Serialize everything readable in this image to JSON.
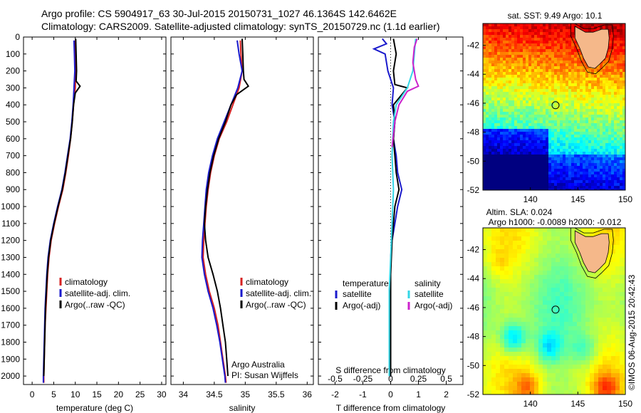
{
  "header": {
    "line1": "Argo profile: CS 5904917_63 30-Jul-2015 20150731_1027 46.1364S 142.6462E",
    "line2": "Climatology: CARS2009. Satellite-adjusted climatology: synTS_20150729.nc (1.1d earlier)"
  },
  "side_text": "©IMOS 06-Aug-2015 20:42:43",
  "chart_data": [
    {
      "type": "line",
      "id": "temperature",
      "xlabel": "temperature (deg C)",
      "ylabel": "",
      "xlim": [
        -2,
        31
      ],
      "ylim": [
        2050,
        0
      ],
      "xticks": [
        0,
        5,
        10,
        15,
        20,
        25,
        30
      ],
      "yticks": [
        0,
        100,
        200,
        300,
        400,
        500,
        600,
        700,
        800,
        900,
        1000,
        1100,
        1200,
        1300,
        1400,
        1500,
        1600,
        1700,
        1800,
        1900,
        2000
      ],
      "legend": [
        "climatology",
        "satellite-adj. clim.",
        "Argo(..raw -QC)"
      ],
      "series": [
        {
          "name": "climatology",
          "color": "#d62020",
          "points": [
            [
              10.0,
              20
            ],
            [
              10.0,
              100
            ],
            [
              10.1,
              200
            ],
            [
              10.0,
              300
            ],
            [
              9.6,
              400
            ],
            [
              9.3,
              500
            ],
            [
              8.9,
              600
            ],
            [
              8.4,
              700
            ],
            [
              7.8,
              800
            ],
            [
              7.1,
              900
            ],
            [
              6.1,
              1000
            ],
            [
              5.2,
              1100
            ],
            [
              4.4,
              1200
            ],
            [
              3.9,
              1300
            ],
            [
              3.6,
              1400
            ],
            [
              3.4,
              1500
            ],
            [
              3.2,
              1600
            ],
            [
              3.0,
              1700
            ],
            [
              2.9,
              1800
            ],
            [
              2.8,
              1900
            ],
            [
              2.7,
              2000
            ],
            [
              2.7,
              2040
            ]
          ]
        },
        {
          "name": "satellite-adj. clim.",
          "color": "#1a1acc",
          "points": [
            [
              9.7,
              20
            ],
            [
              9.8,
              100
            ],
            [
              9.9,
              200
            ],
            [
              9.7,
              300
            ],
            [
              9.5,
              400
            ],
            [
              9.2,
              500
            ],
            [
              8.8,
              600
            ],
            [
              8.2,
              700
            ],
            [
              7.6,
              800
            ],
            [
              6.9,
              900
            ],
            [
              5.9,
              1000
            ],
            [
              5.0,
              1100
            ],
            [
              4.2,
              1200
            ],
            [
              3.7,
              1300
            ],
            [
              3.4,
              1400
            ],
            [
              3.2,
              1500
            ],
            [
              3.0,
              1600
            ],
            [
              2.9,
              1700
            ],
            [
              2.8,
              1800
            ],
            [
              2.7,
              1900
            ],
            [
              2.6,
              2000
            ],
            [
              2.6,
              2040
            ]
          ]
        },
        {
          "name": "Argo(..raw -QC)",
          "color": "#000000",
          "points": [
            [
              10.1,
              10
            ],
            [
              10.2,
              100
            ],
            [
              10.3,
              200
            ],
            [
              10.2,
              260
            ],
            [
              11.1,
              290
            ],
            [
              10.0,
              330
            ],
            [
              9.6,
              400
            ],
            [
              9.3,
              500
            ],
            [
              8.9,
              600
            ],
            [
              8.3,
              700
            ],
            [
              7.7,
              800
            ],
            [
              7.0,
              900
            ],
            [
              6.0,
              1000
            ],
            [
              5.1,
              1100
            ],
            [
              4.3,
              1200
            ],
            [
              3.8,
              1300
            ],
            [
              3.5,
              1400
            ],
            [
              3.3,
              1500
            ],
            [
              3.1,
              1600
            ],
            [
              3.0,
              1700
            ],
            [
              2.9,
              1800
            ],
            [
              2.8,
              1900
            ],
            [
              2.7,
              2000
            ]
          ]
        }
      ]
    },
    {
      "type": "line",
      "id": "salinity",
      "xlabel": "salinity",
      "ylabel": "",
      "xlim": [
        33.8,
        36.1
      ],
      "ylim": [
        2050,
        0
      ],
      "xticks": [
        34,
        34.5,
        35,
        35.5,
        36
      ],
      "legend": [
        "climatology",
        "satellite-adj. clim.",
        "Argo(..raw -QC)"
      ],
      "annotations": [
        "Argo Australia",
        "PI: Susan Wijffels"
      ],
      "series": [
        {
          "name": "climatology",
          "color": "#d62020",
          "points": [
            [
              34.92,
              20
            ],
            [
              34.93,
              100
            ],
            [
              34.95,
              200
            ],
            [
              34.9,
              300
            ],
            [
              34.8,
              400
            ],
            [
              34.7,
              500
            ],
            [
              34.58,
              600
            ],
            [
              34.5,
              700
            ],
            [
              34.44,
              800
            ],
            [
              34.4,
              900
            ],
            [
              34.37,
              1000
            ],
            [
              34.35,
              1100
            ],
            [
              34.33,
              1200
            ],
            [
              34.32,
              1300
            ],
            [
              34.36,
              1400
            ],
            [
              34.42,
              1500
            ],
            [
              34.5,
              1600
            ],
            [
              34.56,
              1700
            ],
            [
              34.6,
              1800
            ],
            [
              34.64,
              1900
            ],
            [
              34.68,
              2000
            ],
            [
              34.69,
              2040
            ]
          ]
        },
        {
          "name": "satellite-adj. clim.",
          "color": "#1a1acc",
          "points": [
            [
              34.87,
              20
            ],
            [
              34.9,
              100
            ],
            [
              34.95,
              200
            ],
            [
              34.88,
              300
            ],
            [
              34.77,
              400
            ],
            [
              34.66,
              500
            ],
            [
              34.55,
              600
            ],
            [
              34.47,
              700
            ],
            [
              34.41,
              800
            ],
            [
              34.37,
              900
            ],
            [
              34.35,
              1000
            ],
            [
              34.33,
              1100
            ],
            [
              34.31,
              1200
            ],
            [
              34.3,
              1300
            ],
            [
              34.34,
              1400
            ],
            [
              34.4,
              1500
            ],
            [
              34.48,
              1600
            ],
            [
              34.54,
              1700
            ],
            [
              34.59,
              1800
            ],
            [
              34.63,
              1900
            ],
            [
              34.67,
              2000
            ],
            [
              34.68,
              2040
            ]
          ]
        },
        {
          "name": "Argo(..raw -QC)",
          "color": "#000000",
          "points": [
            [
              34.95,
              10
            ],
            [
              34.96,
              100
            ],
            [
              34.97,
              200
            ],
            [
              34.98,
              250
            ],
            [
              35.05,
              290
            ],
            [
              34.86,
              340
            ],
            [
              34.77,
              400
            ],
            [
              34.68,
              500
            ],
            [
              34.57,
              600
            ],
            [
              34.49,
              700
            ],
            [
              34.43,
              800
            ],
            [
              34.39,
              900
            ],
            [
              34.36,
              1000
            ],
            [
              34.34,
              1100
            ],
            [
              34.36,
              1200
            ],
            [
              34.4,
              1300
            ],
            [
              34.48,
              1400
            ],
            [
              34.55,
              1500
            ],
            [
              34.6,
              1600
            ],
            [
              34.64,
              1700
            ],
            [
              34.68,
              1800
            ],
            [
              34.7,
              1900
            ],
            [
              34.72,
              2000
            ]
          ]
        }
      ]
    },
    {
      "type": "line",
      "id": "difference",
      "xlabel": "T difference from climatology",
      "xlabel_top": "S difference from climatology",
      "ylabel": "",
      "xlim": [
        -2.6,
        2.6
      ],
      "ylim": [
        2050,
        0
      ],
      "xticks": [
        -2,
        -1,
        0,
        1,
        2
      ],
      "s_ticks": [
        "-0.5",
        "-0.25",
        "0",
        "0.25",
        "0.5"
      ],
      "s_tick_positions": [
        -2,
        -1,
        0,
        1,
        2
      ],
      "legend_temperature": {
        "title": "temperature",
        "items": [
          "satellite",
          "Argo(-adj)"
        ]
      },
      "legend_salinity": {
        "title": "salinity",
        "items": [
          "satellite",
          "Argo(-adj)"
        ]
      },
      "series": [
        {
          "name": "temperature satellite",
          "color": "#1a1acc",
          "points": [
            [
              -0.3,
              10
            ],
            [
              -0.15,
              40
            ],
            [
              -0.6,
              70
            ],
            [
              -0.2,
              100
            ],
            [
              -0.1,
              200
            ],
            [
              0.1,
              300
            ],
            [
              0.05,
              400
            ],
            [
              0.15,
              500
            ],
            [
              0.1,
              600
            ],
            [
              0.2,
              700
            ],
            [
              0.25,
              800
            ],
            [
              0.4,
              900
            ],
            [
              0.25,
              1000
            ],
            [
              0.15,
              1100
            ],
            [
              0.05,
              1200
            ],
            [
              0.0,
              1300
            ],
            [
              0.0,
              1400
            ],
            [
              -0.05,
              1500
            ],
            [
              0.0,
              1600
            ],
            [
              0.0,
              1800
            ],
            [
              0.0,
              2000
            ]
          ]
        },
        {
          "name": "temperature Argo(-adj)",
          "color": "#000000",
          "points": [
            [
              0.1,
              10
            ],
            [
              0.2,
              100
            ],
            [
              0.1,
              200
            ],
            [
              0.15,
              280
            ],
            [
              0.6,
              300
            ],
            [
              0.1,
              400
            ],
            [
              0.15,
              500
            ],
            [
              0.1,
              600
            ],
            [
              0.15,
              700
            ],
            [
              0.2,
              800
            ],
            [
              0.3,
              900
            ],
            [
              0.15,
              1000
            ],
            [
              0.1,
              1100
            ],
            [
              0.05,
              1200
            ],
            [
              0.0,
              1400
            ],
            [
              0.0,
              1600
            ],
            [
              0.0,
              1800
            ],
            [
              0.0,
              2000
            ]
          ]
        },
        {
          "name": "salinity satellite",
          "color": "#33d6e6",
          "points": [
            [
              0.9,
              10
            ],
            [
              0.85,
              100
            ],
            [
              0.8,
              200
            ],
            [
              0.6,
              300
            ],
            [
              0.2,
              400
            ],
            [
              0.1,
              500
            ],
            [
              0.05,
              700
            ],
            [
              0.1,
              900
            ],
            [
              0.05,
              1100
            ],
            [
              0.0,
              1300
            ],
            [
              -0.05,
              1500
            ],
            [
              -0.05,
              1700
            ],
            [
              -0.05,
              1900
            ],
            [
              -0.05,
              2000
            ]
          ]
        },
        {
          "name": "salinity Argo(-adj)",
          "color": "#cc22cc",
          "points": [
            [
              0.95,
              10
            ],
            [
              0.85,
              60
            ],
            [
              0.8,
              150
            ],
            [
              0.9,
              250
            ],
            [
              1.0,
              290
            ],
            [
              0.6,
              320
            ],
            [
              0.3,
              400
            ],
            [
              0.15,
              500
            ],
            [
              0.05,
              650
            ]
          ]
        }
      ]
    },
    {
      "type": "heatmap",
      "id": "sst_map",
      "title": "sat. SST: 9.49 Argo: 10.1",
      "xlim": [
        135,
        150
      ],
      "ylim": [
        -52,
        -40.5
      ],
      "xticks": [
        140,
        145,
        150
      ],
      "yticks": [
        -42,
        -44,
        -46,
        -48,
        -50,
        -52
      ],
      "float_position": [
        142.65,
        -46.14
      ]
    },
    {
      "type": "heatmap",
      "id": "sla_map",
      "title": "Altim. SLA: 0.024",
      "subtitle": "Argo h1000: -0.0089 h2000: -0.012",
      "xlim": [
        135,
        150
      ],
      "ylim": [
        -52,
        -40.5
      ],
      "xticks": [
        140,
        145,
        150
      ],
      "yticks": [
        -42,
        -44,
        -46,
        -48,
        -50,
        -52
      ],
      "float_position": [
        142.65,
        -46.14
      ]
    }
  ]
}
